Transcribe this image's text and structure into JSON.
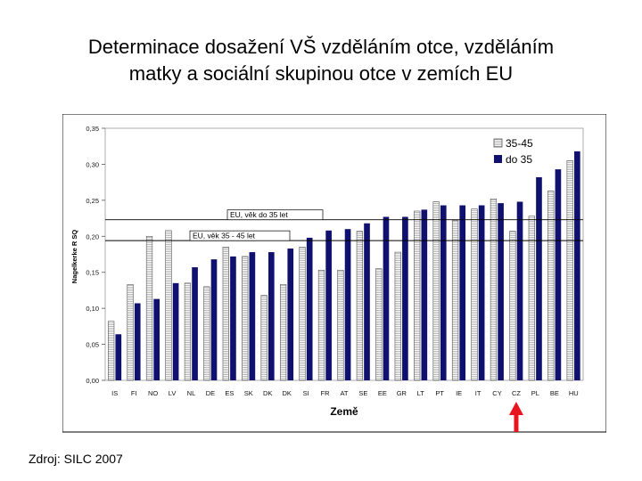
{
  "slide": {
    "title_line1": "Determinace dosažení VŠ vzděláním otce, vzděláním",
    "title_line2": "matky a sociální skupinou otce v zemích EU",
    "source": "Zdroj: SILC 2007"
  },
  "colors": {
    "series1": "#ffffff",
    "series1_stroke": "#555555",
    "series2": "#10106e",
    "arrow": "#e8141e",
    "gridline": "#000000"
  },
  "chart_data": {
    "type": "bar",
    "xlabel": "Země",
    "ylabel": "Nagelkerke R SQ",
    "ylim": [
      0,
      0.35
    ],
    "yticks": [
      "0,00",
      "0,05",
      "0,10",
      "0,15",
      "0,20",
      "0,25",
      "0,30",
      "0,35"
    ],
    "grid": false,
    "legend_position": "top-right",
    "categories": [
      "IS",
      "FI",
      "NO",
      "LV",
      "NL",
      "DE",
      "ES",
      "SK",
      "DK",
      "DK",
      "SI",
      "FR",
      "AT",
      "SE",
      "EE",
      "GR",
      "LT",
      "PT",
      "IE",
      "IT",
      "CY",
      "CZ",
      "PL",
      "BE",
      "HU"
    ],
    "series": [
      {
        "name": "35-45",
        "values": [
          0.082,
          0.133,
          0.2,
          0.208,
          0.135,
          0.13,
          0.185,
          0.172,
          0.118,
          0.133,
          0.185,
          0.153,
          0.153,
          0.207,
          0.155,
          0.178,
          0.235,
          0.248,
          0.222,
          0.238,
          0.252,
          0.207,
          0.228,
          0.263,
          0.305
        ]
      },
      {
        "name": "do 35",
        "values": [
          0.064,
          0.107,
          0.113,
          0.135,
          0.157,
          0.168,
          0.172,
          0.178,
          0.178,
          0.183,
          0.198,
          0.208,
          0.21,
          0.218,
          0.227,
          0.227,
          0.237,
          0.243,
          0.243,
          0.243,
          0.246,
          0.248,
          0.282,
          0.293,
          0.318
        ]
      }
    ],
    "reference_lines": [
      {
        "label": "EU, věk do 35 let",
        "value": 0.223
      },
      {
        "label": "EU, věk 35 - 45 let",
        "value": 0.194
      }
    ],
    "highlight_category": "CZ"
  }
}
